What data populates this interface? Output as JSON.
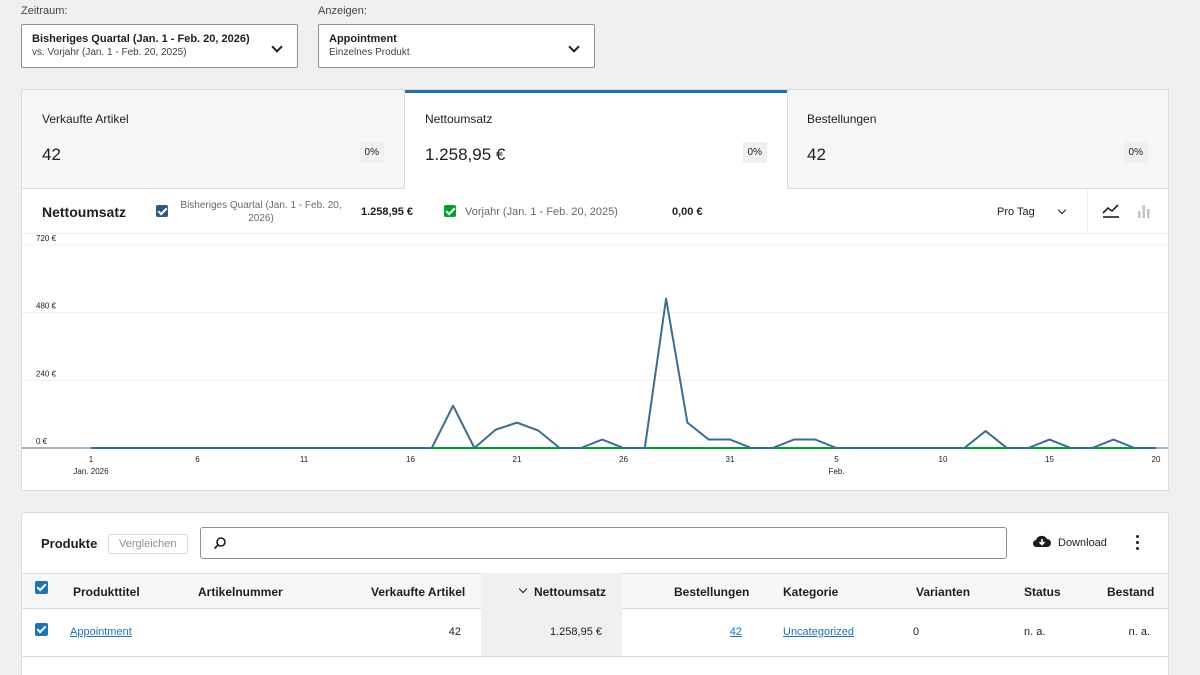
{
  "filters": {
    "period_label": "Zeitraum:",
    "period_main": "Bisheriges Quartal (Jan. 1 - Feb. 20, 2026)",
    "period_compare": "vs. Vorjahr (Jan. 1 - Feb. 20, 2025)",
    "show_label": "Anzeigen:",
    "show_main": "Appointment",
    "show_sub": "Einzelnes Produkt"
  },
  "summary": [
    {
      "label": "Verkaufte Artikel",
      "value": "42",
      "pct": "0%"
    },
    {
      "label": "Nettoumsatz",
      "value": "1.258,95 €",
      "pct": "0%"
    },
    {
      "label": "Bestellungen",
      "value": "42",
      "pct": "0%"
    }
  ],
  "chart_header": {
    "title": "Nettoumsatz",
    "series1_label": "Bisheriges Quartal (Jan. 1 - Feb. 20, 2026)",
    "series1_total": "1.258,95 €",
    "series2_label": "Vorjahr (Jan. 1 - Feb. 20, 2025)",
    "series2_total": "0,00 €",
    "interval": "Pro Tag"
  },
  "colors": {
    "accent": "#2271b1",
    "series1": "#3b6d8f",
    "series2": "#00a32a",
    "checkbox_dark": "#2c5b7d"
  },
  "chart_data": {
    "type": "line",
    "y_ticks": [
      "720 €",
      "480 €",
      "240 €",
      "0 €"
    ],
    "ylim": [
      0,
      720
    ],
    "x_tick_labels": [
      {
        "day": 1,
        "label": "1",
        "sub": "Jan. 2026"
      },
      {
        "day": 6,
        "label": "6",
        "sub": ""
      },
      {
        "day": 11,
        "label": "11",
        "sub": ""
      },
      {
        "day": 16,
        "label": "16",
        "sub": ""
      },
      {
        "day": 21,
        "label": "21",
        "sub": ""
      },
      {
        "day": 26,
        "label": "26",
        "sub": ""
      },
      {
        "day": 31,
        "label": "31",
        "sub": ""
      },
      {
        "day": 36,
        "label": "5",
        "sub": "Feb."
      },
      {
        "day": 41,
        "label": "10",
        "sub": ""
      },
      {
        "day": 46,
        "label": "15",
        "sub": ""
      },
      {
        "day": 51,
        "label": "20",
        "sub": ""
      }
    ],
    "xlim": [
      1,
      51
    ],
    "series": [
      {
        "name": "Bisheriges Quartal (Jan. 1 - Feb. 20, 2026)",
        "color": "#3b6d8f",
        "x": [
          1,
          2,
          3,
          4,
          5,
          6,
          7,
          8,
          9,
          10,
          11,
          12,
          13,
          14,
          15,
          16,
          17,
          18,
          19,
          20,
          21,
          22,
          23,
          24,
          25,
          26,
          27,
          28,
          29,
          30,
          31,
          32,
          33,
          34,
          35,
          36,
          37,
          38,
          39,
          40,
          41,
          42,
          43,
          44,
          45,
          46,
          47,
          48,
          49,
          50,
          51
        ],
        "values": [
          0,
          0,
          0,
          0,
          0,
          0,
          0,
          0,
          0,
          0,
          0,
          0,
          0,
          0,
          0,
          0,
          0,
          150,
          0,
          65,
          90,
          62,
          0,
          0,
          30,
          0,
          0,
          530,
          90,
          30,
          30,
          0,
          0,
          30,
          30,
          0,
          0,
          0,
          0,
          0,
          0,
          0,
          60,
          0,
          0,
          30,
          0,
          0,
          30,
          0,
          0
        ]
      },
      {
        "name": "Vorjahr (Jan. 1 - Feb. 20, 2025)",
        "color": "#00a32a",
        "x": [
          1,
          51
        ],
        "values": [
          0,
          0
        ]
      }
    ]
  },
  "products": {
    "title": "Produkte",
    "compare_label": "Vergleichen",
    "search_placeholder": "",
    "download_label": "Download",
    "columns": [
      "Produkttitel",
      "Artikelnummer",
      "Verkaufte Artikel",
      "Nettoumsatz",
      "Bestellungen",
      "Kategorie",
      "Varianten",
      "Status",
      "Bestand"
    ],
    "rows": [
      {
        "title": "Appointment",
        "sku": "",
        "items_sold": "42",
        "net_sales": "1.258,95 €",
        "orders": "42",
        "category": "Uncategorized",
        "variations": "0",
        "status": "n. a.",
        "stock": "n. a."
      }
    ]
  }
}
